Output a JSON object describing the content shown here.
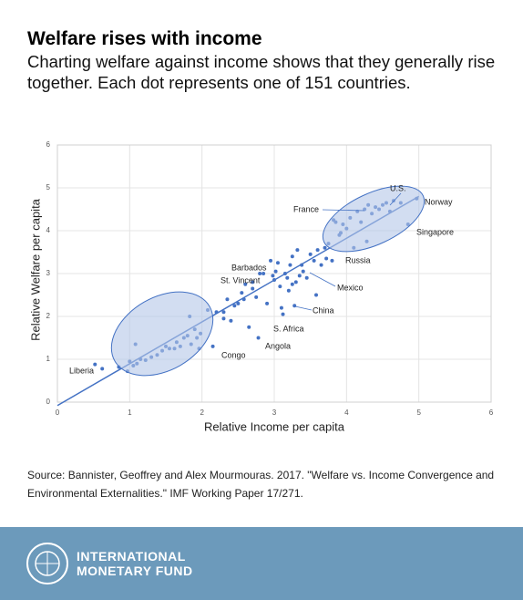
{
  "chart_data": {
    "type": "scatter",
    "title": "Welfare rises with income",
    "subtitle": "Charting welfare against income shows that they generally rise together. Each dot represents one of 151 countries.",
    "xlabel": "Relative Income per capita",
    "ylabel": "Relative Welfare per capita",
    "source": "Source: Bannister, Geoffrey and Alex Mourmouras. 2017. \"Welfare vs. Income Convergence and Environmental Externalities.\" IMF Working Paper 17/271.",
    "footer": [
      "INTERNATIONAL",
      "MONETARY FUND"
    ],
    "annotations": [
      "U.S.",
      "Norway",
      "France",
      "Singapore",
      "Russia",
      "Barbados",
      "St. Vincent",
      "Mexico",
      "China",
      "S. Africa",
      "Angola",
      "Congo",
      "Liberia"
    ],
    "xlim": [
      0,
      6
    ],
    "ylim": [
      0,
      6
    ],
    "xticks": [
      0,
      1,
      2,
      3,
      4,
      5,
      6
    ],
    "yticks": [
      0,
      1,
      2,
      3,
      4,
      5,
      6
    ],
    "grid": true,
    "color": "#4472c4",
    "trendline": {
      "x": [
        0,
        5
      ],
      "y": [
        -0.08,
        4.8
      ]
    },
    "x": [
      0.52,
      0.62,
      0.85,
      0.97,
      1.0,
      1.05,
      1.08,
      1.1,
      1.15,
      1.22,
      1.3,
      1.38,
      1.45,
      1.5,
      1.55,
      1.62,
      1.65,
      1.7,
      1.75,
      1.8,
      1.83,
      1.85,
      1.9,
      1.93,
      1.96,
      1.98,
      2.08,
      2.15,
      2.2,
      2.3,
      2.35,
      2.4,
      2.45,
      2.5,
      2.55,
      2.58,
      2.6,
      2.65,
      2.7,
      2.75,
      2.78,
      2.8,
      2.85,
      2.9,
      2.95,
      2.98,
      3.0,
      3.02,
      3.05,
      3.08,
      3.1,
      3.12,
      3.15,
      3.18,
      3.2,
      3.22,
      3.25,
      3.28,
      3.3,
      3.32,
      3.35,
      3.38,
      3.4,
      3.45,
      3.5,
      3.55,
      3.58,
      3.6,
      3.65,
      3.7,
      3.72,
      3.75,
      3.8,
      3.85,
      3.9,
      3.95,
      4.0,
      4.05,
      4.1,
      4.15,
      4.2,
      4.25,
      4.28,
      4.3,
      4.35,
      4.4,
      4.45,
      4.5,
      4.55,
      4.6,
      4.65,
      4.75,
      4.85,
      4.97,
      3.82,
      3.92,
      3.25,
      2.7,
      2.3
    ],
    "y": [
      0.88,
      0.78,
      0.82,
      0.72,
      0.95,
      0.85,
      1.35,
      0.9,
      1.0,
      0.98,
      1.05,
      1.1,
      1.2,
      1.3,
      1.25,
      1.25,
      1.4,
      1.3,
      1.5,
      1.55,
      2.0,
      1.35,
      1.7,
      1.5,
      1.25,
      1.6,
      2.15,
      1.3,
      2.1,
      1.95,
      2.4,
      1.9,
      2.25,
      2.3,
      2.55,
      2.4,
      2.75,
      1.75,
      2.65,
      2.45,
      1.5,
      3.0,
      3.0,
      2.3,
      3.3,
      2.95,
      2.85,
      3.05,
      3.25,
      2.7,
      2.2,
      2.05,
      3.0,
      2.9,
      2.6,
      3.2,
      3.4,
      2.25,
      2.8,
      3.55,
      2.95,
      3.2,
      3.05,
      2.9,
      3.45,
      3.3,
      2.5,
      3.55,
      3.2,
      3.6,
      3.35,
      3.7,
      3.3,
      4.2,
      3.9,
      4.15,
      4.05,
      4.3,
      3.6,
      4.45,
      4.2,
      4.5,
      3.75,
      4.6,
      4.4,
      4.55,
      4.5,
      4.6,
      4.65,
      4.45,
      4.7,
      4.65,
      4.15,
      4.75,
      4.25,
      3.95,
      2.75,
      2.8,
      2.1
    ]
  }
}
